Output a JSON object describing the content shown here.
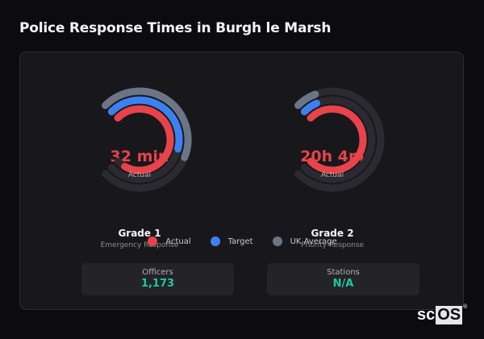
{
  "page": {
    "title": "Police Response Times in Burgh le Marsh"
  },
  "colors": {
    "actual": "#e8434a",
    "target": "#3b82f0",
    "uk_average": "#6b7585",
    "track": "#2a2a30",
    "accent": "#1fc7a0"
  },
  "gauges": [
    {
      "value": "32 min",
      "sub_label": "Actual",
      "title": "Grade 1",
      "description": "Emergency Response",
      "fractions": {
        "actual": 0.94,
        "target": 0.55,
        "uk_average": 0.58
      }
    },
    {
      "value": "20h 4m",
      "sub_label": "Actual",
      "title": "Grade 2",
      "description": "Priority Response",
      "fractions": {
        "actual": 1.0,
        "target": 0.08,
        "uk_average": 0.09
      }
    }
  ],
  "legend": [
    {
      "label": "Actual",
      "color": "#e8434a"
    },
    {
      "label": "Target",
      "color": "#3b82f0"
    },
    {
      "label": "UK Average",
      "color": "#6b7585"
    }
  ],
  "stats": [
    {
      "label": "Officers",
      "value": "1,173"
    },
    {
      "label": "Stations",
      "value": "N/A"
    }
  ],
  "logo": {
    "prefix": "sc",
    "highlight": "OS",
    "mark": "®"
  },
  "chart_data": {
    "type": "radial-gauge",
    "series": [
      {
        "name": "Grade 1 (Emergency Response)",
        "actual": "32 min",
        "actual_fraction": 0.94,
        "target_fraction": 0.55,
        "uk_average_fraction": 0.58
      },
      {
        "name": "Grade 2 (Priority Response)",
        "actual": "20h 4m",
        "actual_fraction": 1.0,
        "target_fraction": 0.08,
        "uk_average_fraction": 0.09
      }
    ],
    "legend": [
      "Actual",
      "Target",
      "UK Average"
    ]
  }
}
